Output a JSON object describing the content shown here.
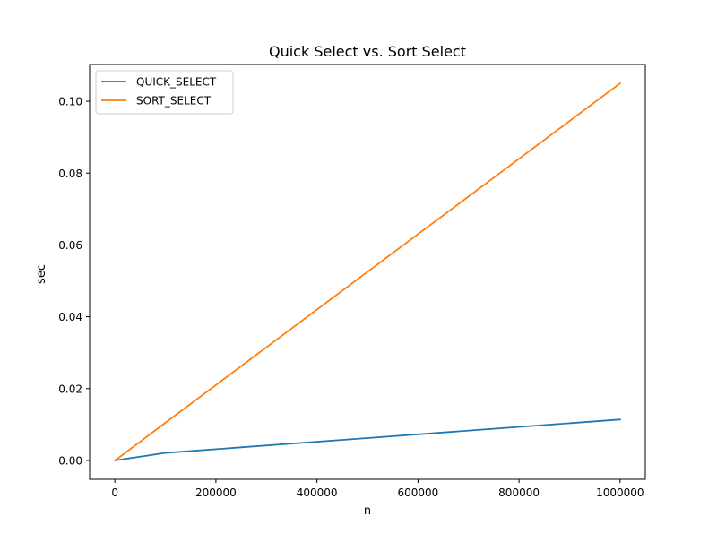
{
  "chart_data": {
    "type": "line",
    "title": "Quick Select vs. Sort Select",
    "xlabel": "n",
    "ylabel": "sec",
    "xlim": [
      -50000,
      1050000
    ],
    "ylim": [
      -0.00525,
      0.11025
    ],
    "xticks": [
      0,
      200000,
      400000,
      600000,
      800000,
      1000000
    ],
    "xtick_labels": [
      "0",
      "200000",
      "400000",
      "600000",
      "800000",
      "1000000"
    ],
    "yticks": [
      0.0,
      0.02,
      0.04,
      0.06,
      0.08,
      0.1
    ],
    "ytick_labels": [
      "0.00",
      "0.02",
      "0.04",
      "0.06",
      "0.08",
      "0.10"
    ],
    "grid": false,
    "legend_position": "upper left",
    "x": [
      10,
      100,
      1000,
      10000,
      100000,
      1000000
    ],
    "series": [
      {
        "name": "QUICK_SELECT",
        "color": "#1f77b4",
        "values": [
          1.5e-06,
          1e-05,
          5e-05,
          0.0002,
          0.0021,
          0.0114
        ]
      },
      {
        "name": "SORT_SELECT",
        "color": "#ff7f0e",
        "values": [
          1e-06,
          1e-05,
          0.0001,
          0.001,
          0.0105,
          0.105
        ]
      }
    ]
  }
}
